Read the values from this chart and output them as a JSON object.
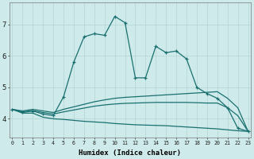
{
  "xlabel": "Humidex (Indice chaleur)",
  "bg_color": "#ceeaea",
  "grid_color": "#b8d8d8",
  "line_color": "#1a7070",
  "y_main": [
    4.3,
    4.2,
    4.25,
    4.15,
    4.1,
    4.7,
    5.8,
    6.6,
    6.7,
    6.65,
    7.25,
    7.05,
    5.3,
    5.3,
    6.3,
    6.1,
    6.15,
    5.9,
    5.0,
    4.8,
    4.65,
    4.35,
    3.7,
    3.6
  ],
  "y_upper": [
    4.3,
    4.25,
    4.3,
    4.25,
    4.2,
    4.3,
    4.38,
    4.46,
    4.54,
    4.6,
    4.65,
    4.68,
    4.7,
    4.72,
    4.74,
    4.76,
    4.78,
    4.8,
    4.82,
    4.84,
    4.86,
    4.65,
    4.35,
    3.6
  ],
  "y_mid": [
    4.3,
    4.22,
    4.26,
    4.2,
    4.15,
    4.22,
    4.28,
    4.34,
    4.4,
    4.44,
    4.47,
    4.49,
    4.5,
    4.51,
    4.52,
    4.52,
    4.52,
    4.52,
    4.51,
    4.5,
    4.5,
    4.35,
    4.1,
    3.6
  ],
  "y_lower": [
    4.3,
    4.18,
    4.18,
    4.05,
    4.0,
    3.98,
    3.95,
    3.92,
    3.9,
    3.88,
    3.85,
    3.83,
    3.81,
    3.8,
    3.79,
    3.78,
    3.76,
    3.74,
    3.72,
    3.7,
    3.68,
    3.65,
    3.62,
    3.6
  ],
  "ylim": [
    3.4,
    7.7
  ],
  "yticks": [
    4,
    5,
    6,
    7
  ],
  "xticks": [
    0,
    1,
    2,
    3,
    4,
    5,
    6,
    7,
    8,
    9,
    10,
    11,
    12,
    13,
    14,
    15,
    16,
    17,
    18,
    19,
    20,
    21,
    22,
    23
  ]
}
